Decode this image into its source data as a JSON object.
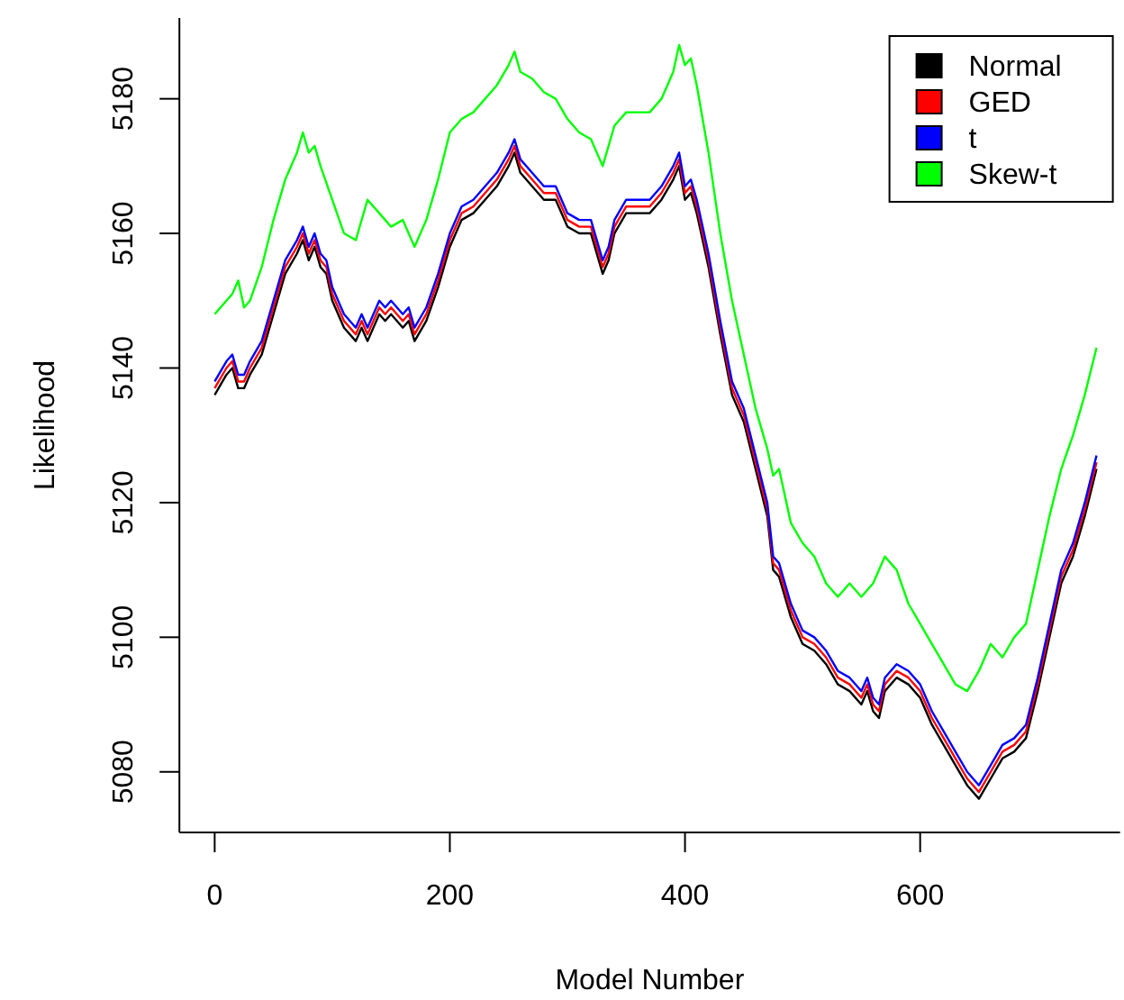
{
  "chart_data": {
    "type": "line",
    "xlabel": "Model Number",
    "ylabel": "Likelihood",
    "xlim": [
      -30,
      770
    ],
    "ylim": [
      5071,
      5192
    ],
    "xticks": [
      0,
      200,
      400,
      600
    ],
    "yticks": [
      5080,
      5100,
      5120,
      5140,
      5160,
      5180
    ],
    "x": [
      0,
      10,
      15,
      20,
      25,
      30,
      40,
      50,
      60,
      70,
      75,
      80,
      85,
      90,
      95,
      100,
      110,
      120,
      125,
      130,
      140,
      145,
      150,
      160,
      165,
      170,
      180,
      190,
      200,
      210,
      220,
      230,
      240,
      250,
      255,
      260,
      270,
      280,
      290,
      300,
      310,
      320,
      330,
      335,
      340,
      350,
      360,
      370,
      380,
      390,
      395,
      400,
      405,
      410,
      420,
      430,
      440,
      450,
      460,
      470,
      475,
      480,
      490,
      500,
      510,
      520,
      530,
      540,
      550,
      555,
      560,
      565,
      570,
      580,
      590,
      600,
      610,
      620,
      630,
      640,
      650,
      660,
      670,
      680,
      690,
      700,
      710,
      720,
      730,
      740,
      750
    ],
    "grid": false,
    "legend": "top right",
    "marker": "none",
    "line_style": "solid",
    "series": [
      {
        "name": "Normal",
        "color": "#000000",
        "values": [
          5136,
          5139,
          5140,
          5137,
          5137,
          5139,
          5142,
          5148,
          5154,
          5157,
          5159,
          5156,
          5158,
          5155,
          5154,
          5150,
          5146,
          5144,
          5146,
          5144,
          5148,
          5147,
          5148,
          5146,
          5147,
          5144,
          5147,
          5152,
          5158,
          5162,
          5163,
          5165,
          5167,
          5170,
          5172,
          5169,
          5167,
          5165,
          5165,
          5161,
          5160,
          5160,
          5154,
          5156,
          5160,
          5163,
          5163,
          5163,
          5165,
          5168,
          5170,
          5165,
          5166,
          5163,
          5155,
          5145,
          5136,
          5132,
          5125,
          5118,
          5110,
          5109,
          5103,
          5099,
          5098,
          5096,
          5093,
          5092,
          5090,
          5092,
          5089,
          5088,
          5092,
          5094,
          5093,
          5091,
          5087,
          5084,
          5081,
          5078,
          5076,
          5079,
          5082,
          5083,
          5085,
          5092,
          5100,
          5108,
          5112,
          5118,
          5125
        ]
      },
      {
        "name": "GED",
        "color": "#ff0000",
        "values": [
          5137,
          5140,
          5141,
          5138,
          5138,
          5140,
          5143,
          5149,
          5155,
          5158,
          5160,
          5157,
          5159,
          5156,
          5155,
          5151,
          5147,
          5145,
          5147,
          5145,
          5149,
          5148,
          5149,
          5147,
          5148,
          5145,
          5148,
          5153,
          5159,
          5163,
          5164,
          5166,
          5168,
          5171,
          5173,
          5170,
          5168,
          5166,
          5166,
          5162,
          5161,
          5161,
          5155,
          5157,
          5161,
          5164,
          5164,
          5164,
          5166,
          5169,
          5171,
          5166,
          5167,
          5164,
          5156,
          5146,
          5137,
          5133,
          5126,
          5119,
          5111,
          5110,
          5104,
          5100,
          5099,
          5097,
          5094,
          5093,
          5091,
          5093,
          5090,
          5089,
          5093,
          5095,
          5094,
          5092,
          5088,
          5085,
          5082,
          5079,
          5077,
          5080,
          5083,
          5084,
          5086,
          5093,
          5101,
          5109,
          5113,
          5119,
          5126
        ]
      },
      {
        "name": "t",
        "color": "#0000ff",
        "values": [
          5138,
          5141,
          5142,
          5139,
          5139,
          5141,
          5144,
          5150,
          5156,
          5159,
          5161,
          5158,
          5160,
          5157,
          5156,
          5152,
          5148,
          5146,
          5148,
          5146,
          5150,
          5149,
          5150,
          5148,
          5149,
          5146,
          5149,
          5154,
          5160,
          5164,
          5165,
          5167,
          5169,
          5172,
          5174,
          5171,
          5169,
          5167,
          5167,
          5163,
          5162,
          5162,
          5156,
          5158,
          5162,
          5165,
          5165,
          5165,
          5167,
          5170,
          5172,
          5167,
          5168,
          5165,
          5157,
          5147,
          5138,
          5134,
          5127,
          5120,
          5112,
          5111,
          5105,
          5101,
          5100,
          5098,
          5095,
          5094,
          5092,
          5094,
          5091,
          5090,
          5094,
          5096,
          5095,
          5093,
          5089,
          5086,
          5083,
          5080,
          5078,
          5081,
          5084,
          5085,
          5087,
          5094,
          5102,
          5110,
          5114,
          5120,
          5127
        ]
      },
      {
        "name": "Skew-t",
        "color": "#00ff00",
        "x": [
          0,
          10,
          15,
          20,
          25,
          30,
          40,
          50,
          60,
          70,
          75,
          80,
          85,
          90,
          100,
          110,
          120,
          130,
          140,
          150,
          160,
          170,
          180,
          190,
          200,
          210,
          220,
          230,
          240,
          250,
          255,
          260,
          270,
          280,
          290,
          300,
          310,
          320,
          330,
          340,
          350,
          360,
          370,
          380,
          390,
          395,
          400,
          405,
          410,
          420,
          430,
          440,
          450,
          460,
          470,
          475,
          480,
          490,
          500,
          510,
          520,
          530,
          540,
          550,
          560,
          570,
          580,
          590,
          600,
          610,
          620,
          630,
          640,
          650,
          660,
          670,
          680,
          690,
          700,
          710,
          720,
          730,
          740,
          750
        ],
        "values": [
          5148,
          5150,
          5151,
          5153,
          5149,
          5150,
          5155,
          5162,
          5168,
          5172,
          5175,
          5172,
          5173,
          5170,
          5165,
          5160,
          5159,
          5165,
          5163,
          5161,
          5162,
          5158,
          5162,
          5168,
          5175,
          5177,
          5178,
          5180,
          5182,
          5185,
          5187,
          5184,
          5183,
          5181,
          5180,
          5177,
          5175,
          5174,
          5170,
          5176,
          5178,
          5178,
          5178,
          5180,
          5184,
          5188,
          5185,
          5186,
          5182,
          5172,
          5160,
          5150,
          5142,
          5134,
          5128,
          5124,
          5125,
          5117,
          5114,
          5112,
          5108,
          5106,
          5108,
          5106,
          5108,
          5112,
          5110,
          5105,
          5102,
          5099,
          5096,
          5093,
          5092,
          5095,
          5099,
          5097,
          5100,
          5102,
          5110,
          5118,
          5125,
          5130,
          5136,
          5143
        ]
      }
    ]
  }
}
